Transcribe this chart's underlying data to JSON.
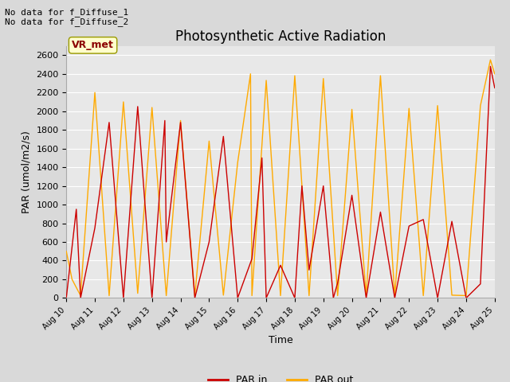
{
  "title": "Photosynthetic Active Radiation",
  "xlabel": "Time",
  "ylabel": "PAR (umol/m2/s)",
  "annotation_text": "No data for f_Diffuse_1\nNo data for f_Diffuse_2",
  "legend_label_text": "VR_met",
  "legend_entries": [
    "PAR in",
    "PAR out"
  ],
  "legend_colors": [
    "#cc0000",
    "#ffaa00"
  ],
  "par_in_color": "#cc0000",
  "par_out_color": "#ffaa00",
  "ylim": [
    0,
    2700
  ],
  "xlim": [
    0,
    15
  ],
  "bg_color": "#d9d9d9",
  "axes_bg": "#e8e8e8",
  "x_tick_labels": [
    "Aug 10",
    "Aug 11",
    "Aug 12",
    "Aug 13",
    "Aug 14",
    "Aug 15",
    "Aug 16",
    "Aug 17",
    "Aug 18",
    "Aug 19",
    "Aug 20",
    "Aug 21",
    "Aug 22",
    "Aug 23",
    "Aug 24",
    "Aug 25"
  ],
  "par_in_x": [
    0,
    0.35,
    0.5,
    1.0,
    1.5,
    2.0,
    2.5,
    3.0,
    3.45,
    3.5,
    4.0,
    4.5,
    5.0,
    5.5,
    6.0,
    6.5,
    6.85,
    7.0,
    7.5,
    8.0,
    8.25,
    8.5,
    9.0,
    9.35,
    9.5,
    10.0,
    10.5,
    11.0,
    11.5,
    12.0,
    12.5,
    13.0,
    13.5,
    14.0,
    14.5,
    14.85,
    15.0
  ],
  "par_in_y": [
    0,
    950,
    0,
    750,
    1880,
    0,
    2050,
    0,
    1900,
    600,
    1880,
    0,
    600,
    1730,
    0,
    420,
    1500,
    0,
    350,
    0,
    1200,
    300,
    1200,
    0,
    160,
    1100,
    0,
    920,
    0,
    770,
    840,
    0,
    820,
    0,
    150,
    2480,
    2250
  ],
  "par_out_x": [
    0,
    0.2,
    0.5,
    1.0,
    1.5,
    2.0,
    2.5,
    3.0,
    3.5,
    4.0,
    4.5,
    5.0,
    5.5,
    6.0,
    6.45,
    6.5,
    7.0,
    7.5,
    8.0,
    8.5,
    9.0,
    9.5,
    10.0,
    10.5,
    11.0,
    11.5,
    12.0,
    12.5,
    13.0,
    13.5,
    14.0,
    14.5,
    14.85,
    15.0
  ],
  "par_out_y": [
    500,
    200,
    25,
    2200,
    25,
    2100,
    50,
    2040,
    25,
    1900,
    25,
    1680,
    30,
    1450,
    2400,
    25,
    2330,
    25,
    2380,
    25,
    2350,
    25,
    2020,
    25,
    2380,
    25,
    2030,
    25,
    2060,
    30,
    25,
    2060,
    2550,
    2400
  ]
}
